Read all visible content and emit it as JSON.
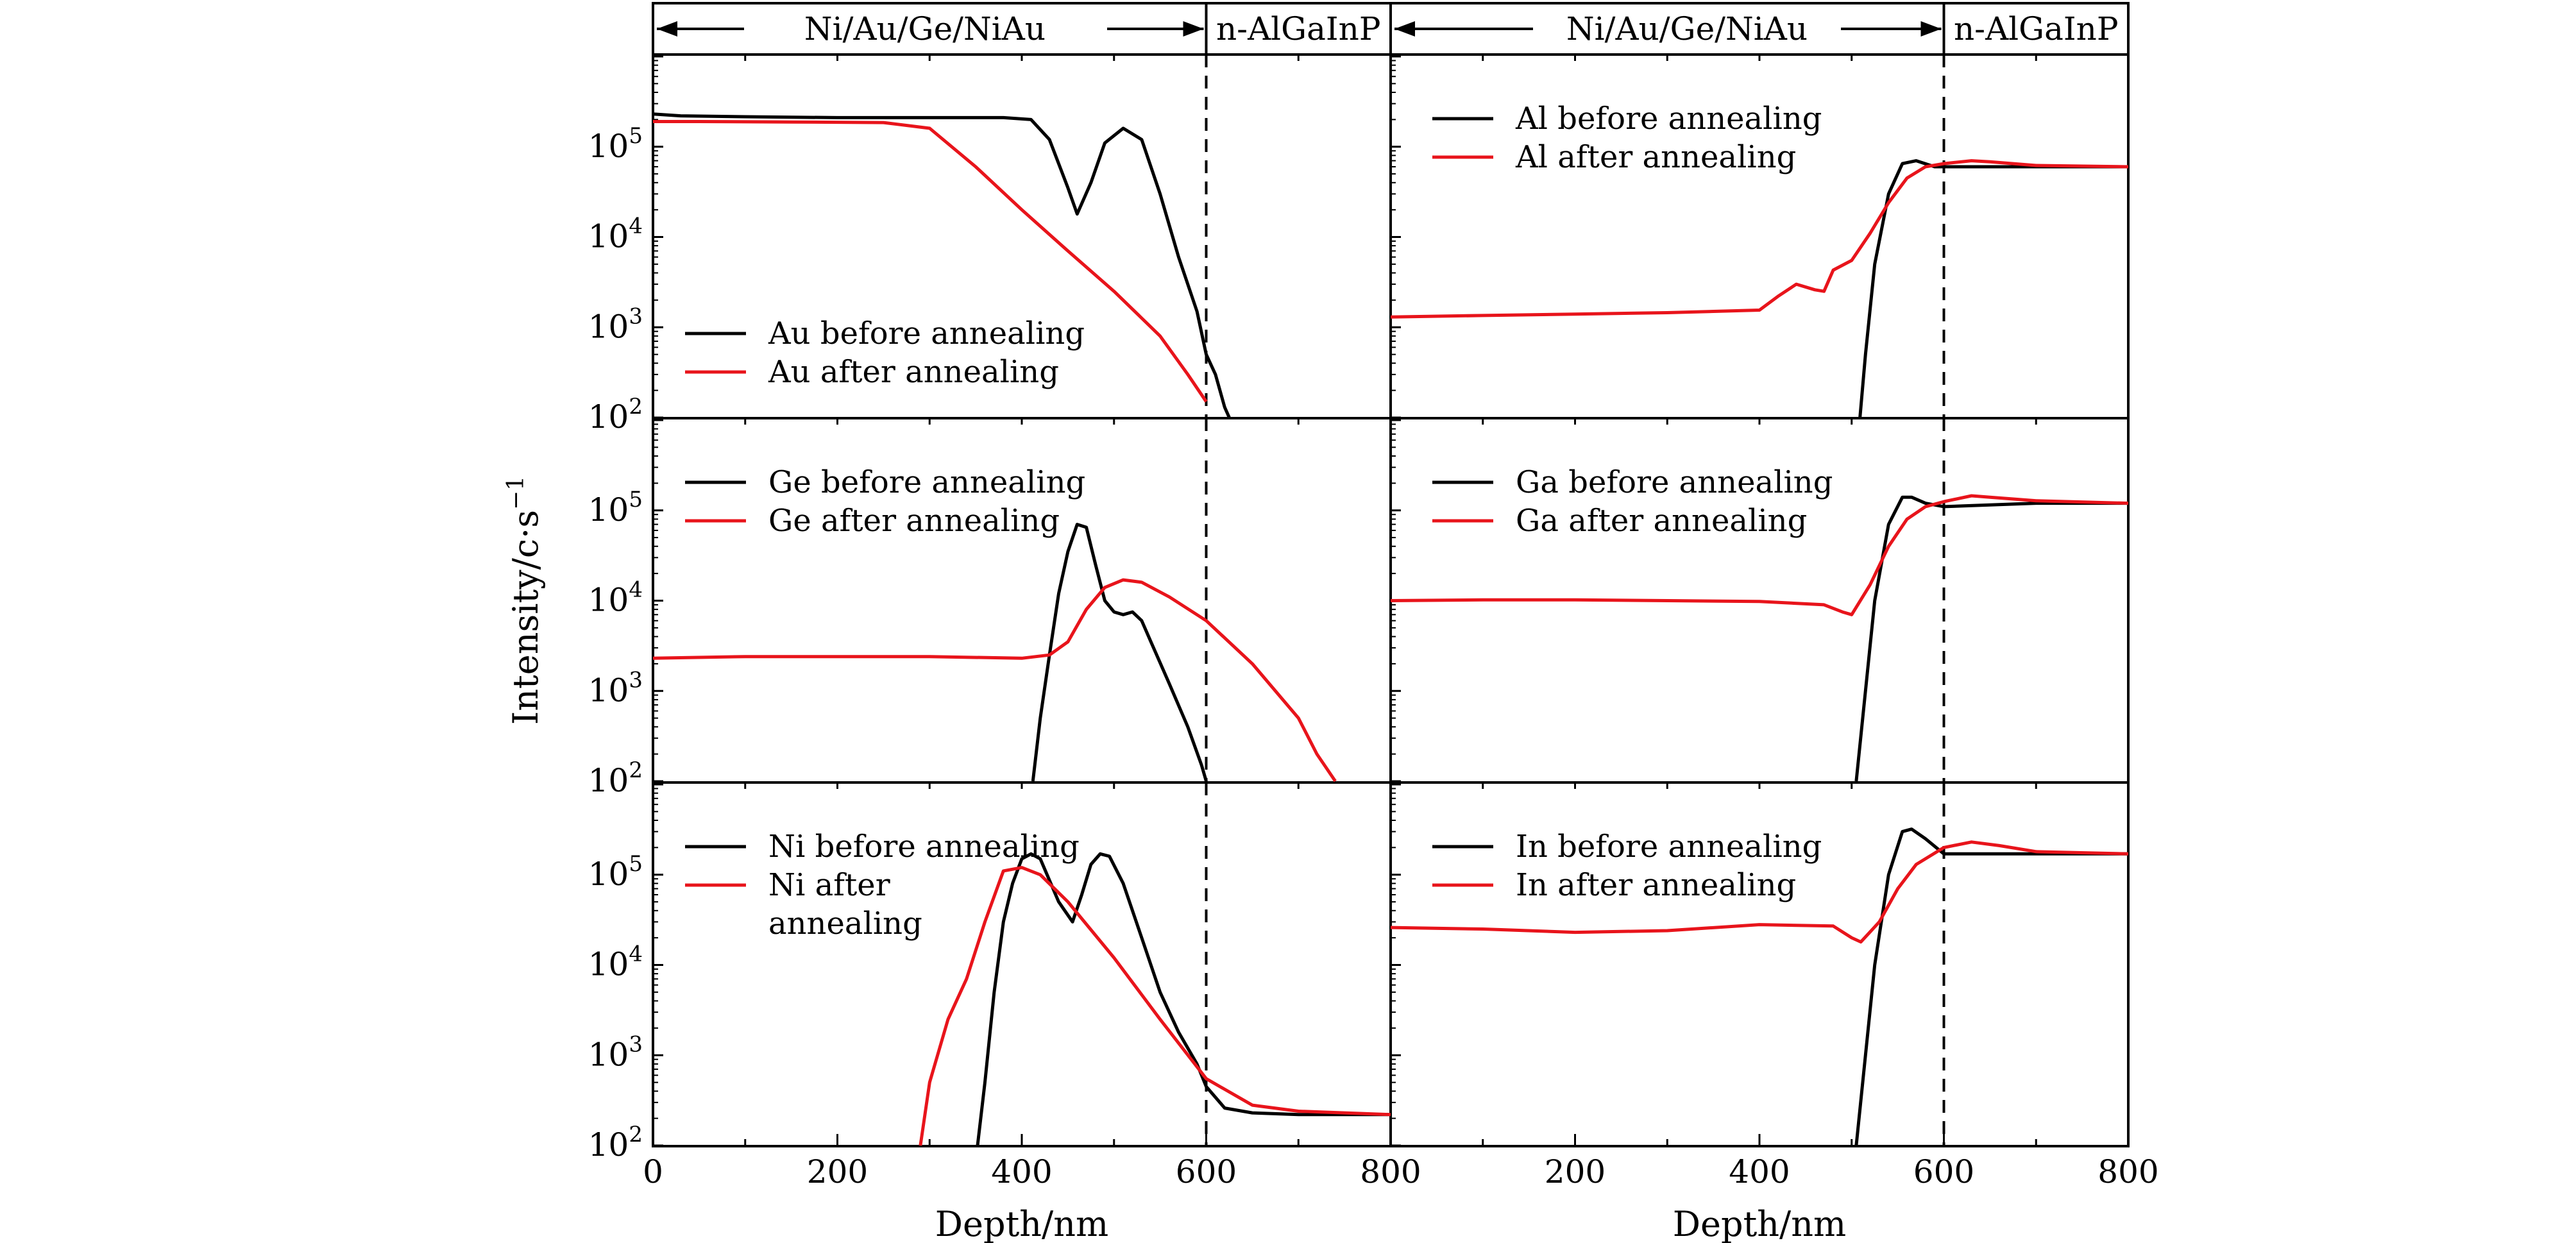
{
  "header": {
    "left": {
      "region_label": "Ni/Au/Ge/NiAu",
      "substrate_label": "n-AlGaInP"
    },
    "right": {
      "region_label": "Ni/Au/Ge/NiAu",
      "substrate_label": "n-AlGaInP"
    }
  },
  "ylabel": "Intensity/c·s",
  "ylabel_sup": "−1",
  "xlabel": "Depth/nm",
  "colors": {
    "before": "#000000",
    "after": "#e8141b"
  },
  "chart_data": [
    {
      "type": "line",
      "position": "top-left",
      "element": "Au",
      "xlabel": "Depth/nm",
      "x_range": [
        0,
        800
      ],
      "y_range": [
        100,
        1000000
      ],
      "y_scale": "log",
      "interface_depth": 600,
      "legend_position": "lower-left",
      "series": [
        {
          "name": "Au before annealing",
          "color": "#000000",
          "x": [
            0,
            30,
            100,
            200,
            300,
            380,
            410,
            430,
            450,
            460,
            475,
            490,
            510,
            530,
            550,
            570,
            590,
            600,
            610,
            620,
            625
          ],
          "y": [
            230000,
            220000,
            215000,
            210000,
            210000,
            210000,
            200000,
            120000,
            35000,
            18000,
            40000,
            110000,
            160000,
            120000,
            30000,
            6000,
            1500,
            500,
            300,
            130,
            100
          ]
        },
        {
          "name": "Au after annealing",
          "color": "#e8141b",
          "x": [
            0,
            50,
            150,
            250,
            300,
            350,
            400,
            450,
            500,
            550,
            580,
            600
          ],
          "y": [
            190000,
            190000,
            188000,
            185000,
            160000,
            60000,
            20000,
            7000,
            2500,
            800,
            300,
            150
          ]
        }
      ]
    },
    {
      "type": "line",
      "position": "top-right",
      "element": "Al",
      "xlabel": "Depth/nm",
      "x_range": [
        0,
        800
      ],
      "y_range": [
        100,
        1000000
      ],
      "y_scale": "log",
      "interface_depth": 600,
      "legend_position": "upper-left",
      "series": [
        {
          "name": "Al before annealing",
          "color": "#000000",
          "x": [
            509,
            515,
            525,
            540,
            555,
            570,
            590,
            620,
            680,
            800
          ],
          "y": [
            100,
            500,
            5000,
            30000,
            65000,
            70000,
            60000,
            60000,
            60000,
            60000
          ]
        },
        {
          "name": "Al after annealing",
          "color": "#e8141b",
          "x": [
            0,
            100,
            200,
            300,
            400,
            420,
            440,
            460,
            470,
            480,
            500,
            520,
            540,
            560,
            580,
            600,
            630,
            650,
            700,
            800
          ],
          "y": [
            1300,
            1350,
            1400,
            1450,
            1550,
            2200,
            3000,
            2600,
            2500,
            4300,
            5500,
            11000,
            24000,
            45000,
            60000,
            65000,
            70000,
            68000,
            62000,
            60000
          ]
        }
      ]
    },
    {
      "type": "line",
      "position": "middle-left",
      "element": "Ge",
      "xlabel": "Depth/nm",
      "x_range": [
        0,
        800
      ],
      "y_range": [
        100,
        1000000
      ],
      "y_scale": "log",
      "interface_depth": 600,
      "legend_position": "upper-left",
      "series": [
        {
          "name": "Ge before annealing",
          "color": "#000000",
          "x": [
            412,
            420,
            430,
            440,
            450,
            460,
            470,
            480,
            490,
            500,
            510,
            520,
            530,
            540,
            560,
            580,
            595,
            600
          ],
          "y": [
            100,
            500,
            2500,
            12000,
            35000,
            70000,
            65000,
            25000,
            10000,
            7500,
            7000,
            7500,
            6000,
            3500,
            1200,
            400,
            150,
            100
          ]
        },
        {
          "name": "Ge after annealing",
          "color": "#e8141b",
          "x": [
            0,
            100,
            200,
            300,
            400,
            430,
            450,
            470,
            490,
            510,
            530,
            560,
            600,
            650,
            700,
            720,
            740
          ],
          "y": [
            2300,
            2400,
            2400,
            2400,
            2300,
            2500,
            3500,
            8000,
            14000,
            17000,
            16000,
            11000,
            6000,
            2000,
            500,
            200,
            100
          ]
        }
      ]
    },
    {
      "type": "line",
      "position": "middle-right",
      "element": "Ga",
      "xlabel": "Depth/nm",
      "x_range": [
        0,
        800
      ],
      "y_range": [
        100,
        1000000
      ],
      "y_scale": "log",
      "interface_depth": 600,
      "legend_position": "upper-left",
      "series": [
        {
          "name": "Ga before annealing",
          "color": "#000000",
          "x": [
            505,
            515,
            525,
            540,
            555,
            565,
            580,
            600,
            650,
            700,
            800
          ],
          "y": [
            100,
            1000,
            10000,
            70000,
            140000,
            140000,
            120000,
            110000,
            115000,
            120000,
            120000
          ]
        },
        {
          "name": "Ga after annealing",
          "color": "#e8141b",
          "x": [
            0,
            100,
            200,
            300,
            400,
            470,
            490,
            500,
            520,
            540,
            560,
            580,
            600,
            630,
            650,
            700,
            800
          ],
          "y": [
            10000,
            10200,
            10200,
            10000,
            9800,
            9000,
            7500,
            7000,
            15000,
            40000,
            80000,
            110000,
            125000,
            145000,
            140000,
            128000,
            120000
          ]
        }
      ]
    },
    {
      "type": "line",
      "position": "bottom-left",
      "element": "Ni",
      "xlabel": "Depth/nm",
      "x_range": [
        0,
        800
      ],
      "y_range": [
        100,
        1000000
      ],
      "y_scale": "log",
      "interface_depth": 600,
      "legend_position": "upper-left",
      "series": [
        {
          "name": "Ni before annealing",
          "color": "#000000",
          "x": [
            352,
            360,
            370,
            380,
            390,
            400,
            410,
            420,
            440,
            455,
            465,
            475,
            485,
            495,
            510,
            530,
            550,
            570,
            590,
            600,
            620,
            650,
            700,
            750,
            800
          ],
          "y": [
            100,
            500,
            5000,
            30000,
            80000,
            150000,
            170000,
            150000,
            50000,
            30000,
            60000,
            130000,
            170000,
            160000,
            80000,
            20000,
            5000,
            1800,
            800,
            450,
            260,
            230,
            220,
            220,
            220
          ]
        },
        {
          "name": "Ni after annealing",
          "color": "#e8141b",
          "x": [
            290,
            300,
            320,
            340,
            360,
            380,
            400,
            420,
            450,
            500,
            550,
            600,
            650,
            700,
            750,
            800
          ],
          "y": [
            100,
            500,
            2500,
            7000,
            30000,
            110000,
            120000,
            100000,
            50000,
            12000,
            2500,
            550,
            280,
            240,
            230,
            220
          ]
        }
      ]
    },
    {
      "type": "line",
      "position": "bottom-right",
      "element": "In",
      "xlabel": "Depth/nm",
      "x_range": [
        0,
        800
      ],
      "y_range": [
        100,
        1000000
      ],
      "y_scale": "log",
      "interface_depth": 600,
      "legend_position": "upper-left",
      "series": [
        {
          "name": "In before annealing",
          "color": "#000000",
          "x": [
            505,
            515,
            525,
            540,
            555,
            565,
            580,
            600,
            650,
            700,
            800
          ],
          "y": [
            100,
            1000,
            10000,
            100000,
            300000,
            320000,
            250000,
            170000,
            170000,
            170000,
            170000
          ]
        },
        {
          "name": "In after annealing",
          "color": "#e8141b",
          "x": [
            0,
            100,
            200,
            300,
            400,
            480,
            500,
            510,
            530,
            550,
            570,
            600,
            630,
            660,
            700,
            800
          ],
          "y": [
            26000,
            25000,
            23000,
            24000,
            28000,
            27000,
            20000,
            18000,
            30000,
            70000,
            130000,
            200000,
            230000,
            210000,
            180000,
            170000
          ]
        }
      ]
    }
  ]
}
